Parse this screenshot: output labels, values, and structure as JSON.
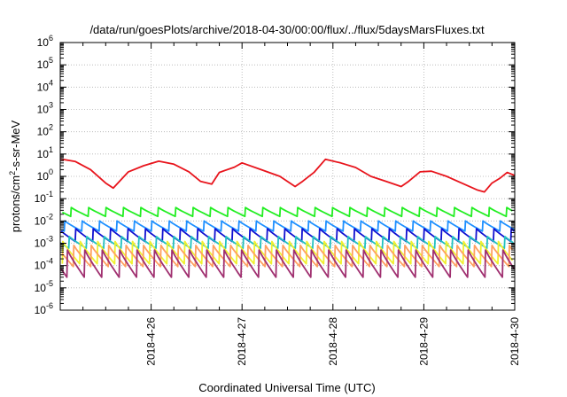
{
  "chart_data": {
    "type": "line",
    "title": "/data/run/goesPlots/archive/2018-04-30/00:00/flux/../flux/5daysMarsFluxes.txt",
    "xlabel": "Coordinated Universal Time (UTC)",
    "ylabel": "protons/cm²-s-sr-MeV",
    "ylabel_parts": {
      "a": "protons/cm",
      "b": "2",
      "c": "-s-sr-MeV"
    },
    "xlim": [
      "2018-04-25",
      "2018-04-30"
    ],
    "x_ticks": [
      "2018-4-26",
      "2018-4-27",
      "2018-4-28",
      "2018-4-29",
      "2018-4-30"
    ],
    "ylim": [
      1e-06,
      1000000.0
    ],
    "y_scale": "log",
    "y_ticks": [
      {
        "base": "10",
        "exp": "-6"
      },
      {
        "base": "10",
        "exp": "-5"
      },
      {
        "base": "10",
        "exp": "-4"
      },
      {
        "base": "10",
        "exp": "-3"
      },
      {
        "base": "10",
        "exp": "-2"
      },
      {
        "base": "10",
        "exp": "-1"
      },
      {
        "base": "10",
        "exp": "0"
      },
      {
        "base": "10",
        "exp": "1"
      },
      {
        "base": "10",
        "exp": "2"
      },
      {
        "base": "10",
        "exp": "3"
      },
      {
        "base": "10",
        "exp": "4"
      },
      {
        "base": "10",
        "exp": "5"
      },
      {
        "base": "10",
        "exp": "6"
      }
    ],
    "grid": true,
    "series": [
      {
        "color": "#e8141c",
        "values": [
          {
            "x": "2018-04-25 00:00",
            "y": 6.0
          },
          {
            "x": "2018-04-25 04:00",
            "y": 4.6
          },
          {
            "x": "2018-04-25 08:00",
            "y": 2.0
          },
          {
            "x": "2018-04-25 12:00",
            "y": 0.5
          },
          {
            "x": "2018-04-25 14:00",
            "y": 0.3
          },
          {
            "x": "2018-04-25 18:00",
            "y": 1.6
          },
          {
            "x": "2018-04-25 22:00",
            "y": 3.0
          },
          {
            "x": "2018-04-26 02:00",
            "y": 4.8
          },
          {
            "x": "2018-04-26 06:00",
            "y": 3.5
          },
          {
            "x": "2018-04-26 10:00",
            "y": 1.6
          },
          {
            "x": "2018-04-26 13:00",
            "y": 0.6
          },
          {
            "x": "2018-04-26 16:00",
            "y": 0.45
          },
          {
            "x": "2018-04-26 18:00",
            "y": 1.5
          },
          {
            "x": "2018-04-26 22:00",
            "y": 2.6
          },
          {
            "x": "2018-04-27 00:00",
            "y": 4.0
          },
          {
            "x": "2018-04-27 05:00",
            "y": 2.0
          },
          {
            "x": "2018-04-27 10:00",
            "y": 1.0
          },
          {
            "x": "2018-04-27 14:00",
            "y": 0.35
          },
          {
            "x": "2018-04-27 16:00",
            "y": 0.6
          },
          {
            "x": "2018-04-27 19:00",
            "y": 1.5
          },
          {
            "x": "2018-04-27 22:00",
            "y": 5.8
          },
          {
            "x": "2018-04-28 02:00",
            "y": 4.0
          },
          {
            "x": "2018-04-28 06:00",
            "y": 2.5
          },
          {
            "x": "2018-04-28 10:00",
            "y": 1.0
          },
          {
            "x": "2018-04-28 14:00",
            "y": 0.6
          },
          {
            "x": "2018-04-28 18:00",
            "y": 0.35
          },
          {
            "x": "2018-04-28 20:00",
            "y": 0.6
          },
          {
            "x": "2018-04-28 23:00",
            "y": 1.6
          },
          {
            "x": "2018-04-29 02:00",
            "y": 1.7
          },
          {
            "x": "2018-04-29 06:00",
            "y": 1.0
          },
          {
            "x": "2018-04-29 10:00",
            "y": 0.5
          },
          {
            "x": "2018-04-29 14:00",
            "y": 0.25
          },
          {
            "x": "2018-04-29 16:00",
            "y": 0.2
          },
          {
            "x": "2018-04-29 18:00",
            "y": 0.5
          },
          {
            "x": "2018-04-29 20:00",
            "y": 0.8
          },
          {
            "x": "2018-04-29 22:00",
            "y": 1.5
          },
          {
            "x": "2018-04-30 00:00",
            "y": 1.1
          }
        ]
      },
      {
        "color": "#22ee22",
        "period_hours": 4.6,
        "peak": 0.04,
        "trough": 0.016
      },
      {
        "color": "#1e90ff",
        "period_hours": 4.6,
        "peak": 0.01,
        "trough": 0.0035
      },
      {
        "color": "#1010d0",
        "period_hours": 4.6,
        "peak": 0.0045,
        "trough": 0.0012
      },
      {
        "color": "#20c0c0",
        "period_hours": 4.6,
        "peak": 0.002,
        "trough": 0.0006
      },
      {
        "color": "#f0f030",
        "period_hours": 4.6,
        "peak": 0.0012,
        "trough": 0.00012
      },
      {
        "color": "#ffa060",
        "period_hours": 4.6,
        "peak": 0.0008,
        "trough": 9e-05
      },
      {
        "color": "#a03070",
        "period_hours": 4.6,
        "peak": 0.0005,
        "trough": 3e-05
      }
    ]
  }
}
